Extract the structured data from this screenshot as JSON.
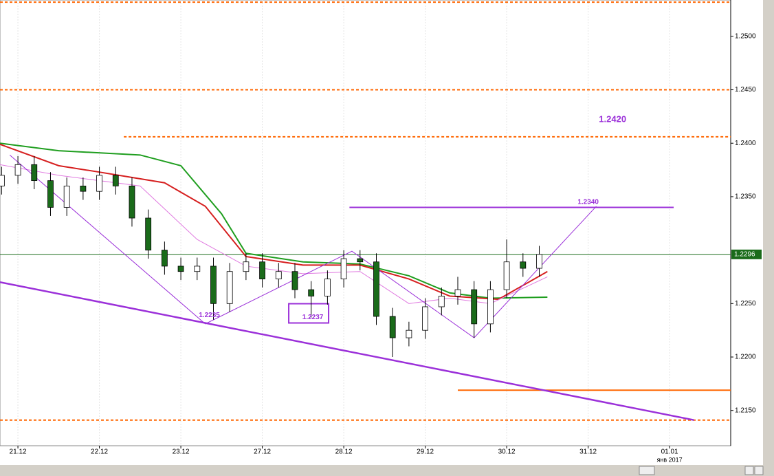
{
  "chart_data": {
    "type": "candlestick",
    "xlim": [
      -0.22,
      8.75
    ],
    "ylim": [
      1.2117,
      1.2534
    ],
    "grid": true,
    "xticks": [
      {
        "value": 0,
        "label": "21.12"
      },
      {
        "value": 1,
        "label": "22.12"
      },
      {
        "value": 2,
        "label": "23.12"
      },
      {
        "value": 3,
        "label": "27.12"
      },
      {
        "value": 4,
        "label": "28.12"
      },
      {
        "value": 5,
        "label": "29.12"
      },
      {
        "value": 6,
        "label": "30.12"
      },
      {
        "value": 7,
        "label": "31.12"
      },
      {
        "value": 8,
        "label": "01.01"
      }
    ],
    "x_sublabel": "янв 2017",
    "yticks": [
      {
        "value": 1.215,
        "label": "1.2150"
      },
      {
        "value": 1.22,
        "label": "1.2200"
      },
      {
        "value": 1.225,
        "label": "1.2250"
      },
      {
        "value": 1.235,
        "label": "1.2350"
      },
      {
        "value": 1.24,
        "label": "1.2400"
      },
      {
        "value": 1.245,
        "label": "1.2450"
      },
      {
        "value": 1.25,
        "label": "1.2500"
      }
    ],
    "up_color": "#ffffff",
    "down_color": "#1a6b1a",
    "x": [
      -0.2,
      0,
      0.2,
      0.4,
      0.6,
      0.8,
      1.0,
      1.2,
      1.4,
      1.6,
      1.8,
      2.0,
      2.2,
      2.4,
      2.6,
      2.8,
      3.0,
      3.2,
      3.4,
      3.6,
      3.8,
      4.0,
      4.2,
      4.4,
      4.6,
      4.8,
      5.0,
      5.2,
      5.4,
      5.6,
      5.8,
      6.0,
      6.2,
      6.4
    ],
    "open": [
      1.236,
      1.237,
      1.238,
      1.2365,
      1.234,
      1.236,
      1.2355,
      1.237,
      1.236,
      1.233,
      1.23,
      1.2285,
      1.228,
      1.2285,
      1.225,
      1.228,
      1.2289,
      1.2273,
      1.228,
      1.2263,
      1.2257,
      1.2273,
      1.2292,
      1.2289,
      1.2238,
      1.2218,
      1.2225,
      1.2247,
      1.2257,
      1.2263,
      1.2231,
      1.2263,
      1.2289,
      1.2283
    ],
    "high": [
      1.2378,
      1.2388,
      1.2388,
      1.2373,
      1.2368,
      1.2368,
      1.2378,
      1.2378,
      1.2368,
      1.2338,
      1.2308,
      1.2293,
      1.2293,
      1.2293,
      1.2288,
      1.2297,
      1.2297,
      1.2288,
      1.2288,
      1.2271,
      1.2281,
      1.23,
      1.23,
      1.2297,
      1.2246,
      1.2233,
      1.2255,
      1.2265,
      1.2275,
      1.2271,
      1.2271,
      1.231,
      1.2297,
      1.2304
    ],
    "low": [
      1.2352,
      1.2362,
      1.2357,
      1.2332,
      1.2332,
      1.2347,
      1.2347,
      1.2352,
      1.2322,
      1.2292,
      1.2277,
      1.2272,
      1.2272,
      1.2235,
      1.2242,
      1.2272,
      1.2265,
      1.2265,
      1.2255,
      1.2237,
      1.2249,
      1.2265,
      1.2281,
      1.223,
      1.22,
      1.221,
      1.2217,
      1.2239,
      1.2249,
      1.2218,
      1.2223,
      1.2255,
      1.2275,
      1.2275
    ],
    "close": [
      1.237,
      1.238,
      1.2365,
      1.234,
      1.236,
      1.2355,
      1.237,
      1.236,
      1.233,
      1.23,
      1.2285,
      1.228,
      1.2285,
      1.225,
      1.228,
      1.2289,
      1.2273,
      1.228,
      1.2263,
      1.2257,
      1.2273,
      1.2292,
      1.2289,
      1.2238,
      1.2218,
      1.2225,
      1.2247,
      1.2257,
      1.2263,
      1.2231,
      1.2263,
      1.2289,
      1.2283,
      1.2296
    ],
    "overlays": [
      {
        "color": "#1f9e1f",
        "width": 2,
        "x": [
          -0.22,
          0.5,
          1.5,
          2.0,
          2.5,
          2.8,
          3.5,
          4.2,
          4.8,
          5.3,
          5.8,
          6.5
        ],
        "values": [
          1.24,
          1.2393,
          1.2389,
          1.2379,
          1.2334,
          1.2297,
          1.2289,
          1.2287,
          1.2276,
          1.226,
          1.2255,
          1.2256
        ]
      },
      {
        "color": "#d61f1f",
        "width": 2,
        "x": [
          -0.22,
          0.5,
          1.0,
          1.8,
          2.3,
          2.8,
          3.5,
          4.2,
          4.8,
          5.3,
          5.9,
          6.5
        ],
        "values": [
          1.2399,
          1.2379,
          1.2373,
          1.2363,
          1.2341,
          1.2294,
          1.2286,
          1.2286,
          1.2273,
          1.2257,
          1.2254,
          1.228
        ]
      },
      {
        "color": "#e07ae0",
        "width": 1,
        "x": [
          -0.22,
          0.5,
          1.5,
          2.2,
          2.8,
          3.5,
          4.2,
          4.8,
          5.3,
          5.8,
          6.5
        ],
        "values": [
          1.238,
          1.237,
          1.236,
          1.231,
          1.2285,
          1.2278,
          1.228,
          1.225,
          1.2255,
          1.225,
          1.2275
        ]
      },
      {
        "color": "#9b30d9",
        "width": 1,
        "x": [
          -0.1,
          2.3,
          4.1,
          5.6,
          7.1
        ],
        "values": [
          1.2389,
          1.2231,
          1.2299,
          1.2218,
          1.2341
        ]
      },
      {
        "color": "#9b30d9",
        "width": 2.5,
        "x": [
          -0.22,
          8.3
        ],
        "values": [
          1.227,
          1.2141
        ]
      }
    ],
    "levels": [
      {
        "value": 1.2532,
        "color": "#ff6600",
        "dashed": true,
        "from": -0.22,
        "to": 8.75
      },
      {
        "value": 1.245,
        "color": "#ff6600",
        "dashed": true,
        "from": -0.22,
        "to": 8.75
      },
      {
        "value": 1.2406,
        "color": "#ff6600",
        "dashed": true,
        "from": 1.3,
        "to": 8.75
      },
      {
        "value": 1.2141,
        "color": "#ff6600",
        "dashed": true,
        "from": -0.22,
        "to": 8.75
      },
      {
        "value": 1.2169,
        "color": "#ff6600",
        "dashed": false,
        "from": 5.4,
        "to": 8.75
      },
      {
        "value": 1.234,
        "color": "#9b30d9",
        "dashed": false,
        "from": 4.07,
        "to": 8.05
      }
    ],
    "last_price": {
      "value": 1.2296,
      "label": "1.2296",
      "color": "#1a6b1a"
    },
    "annotations": [
      {
        "text": "1.2420",
        "x": 7.3,
        "y": 1.2422,
        "color": "#9b30d9",
        "size": 13
      },
      {
        "text": "1.2340",
        "x": 7.0,
        "y": 1.2345,
        "color": "#9b30d9",
        "size": 10
      },
      {
        "text": "1.2235",
        "x": 2.35,
        "y": 1.2239,
        "color": "#9b30d9",
        "size": 10
      },
      {
        "text": "1.2237",
        "x": 3.62,
        "y": 1.2237,
        "color": "#9b30d9",
        "size": 10
      }
    ]
  }
}
